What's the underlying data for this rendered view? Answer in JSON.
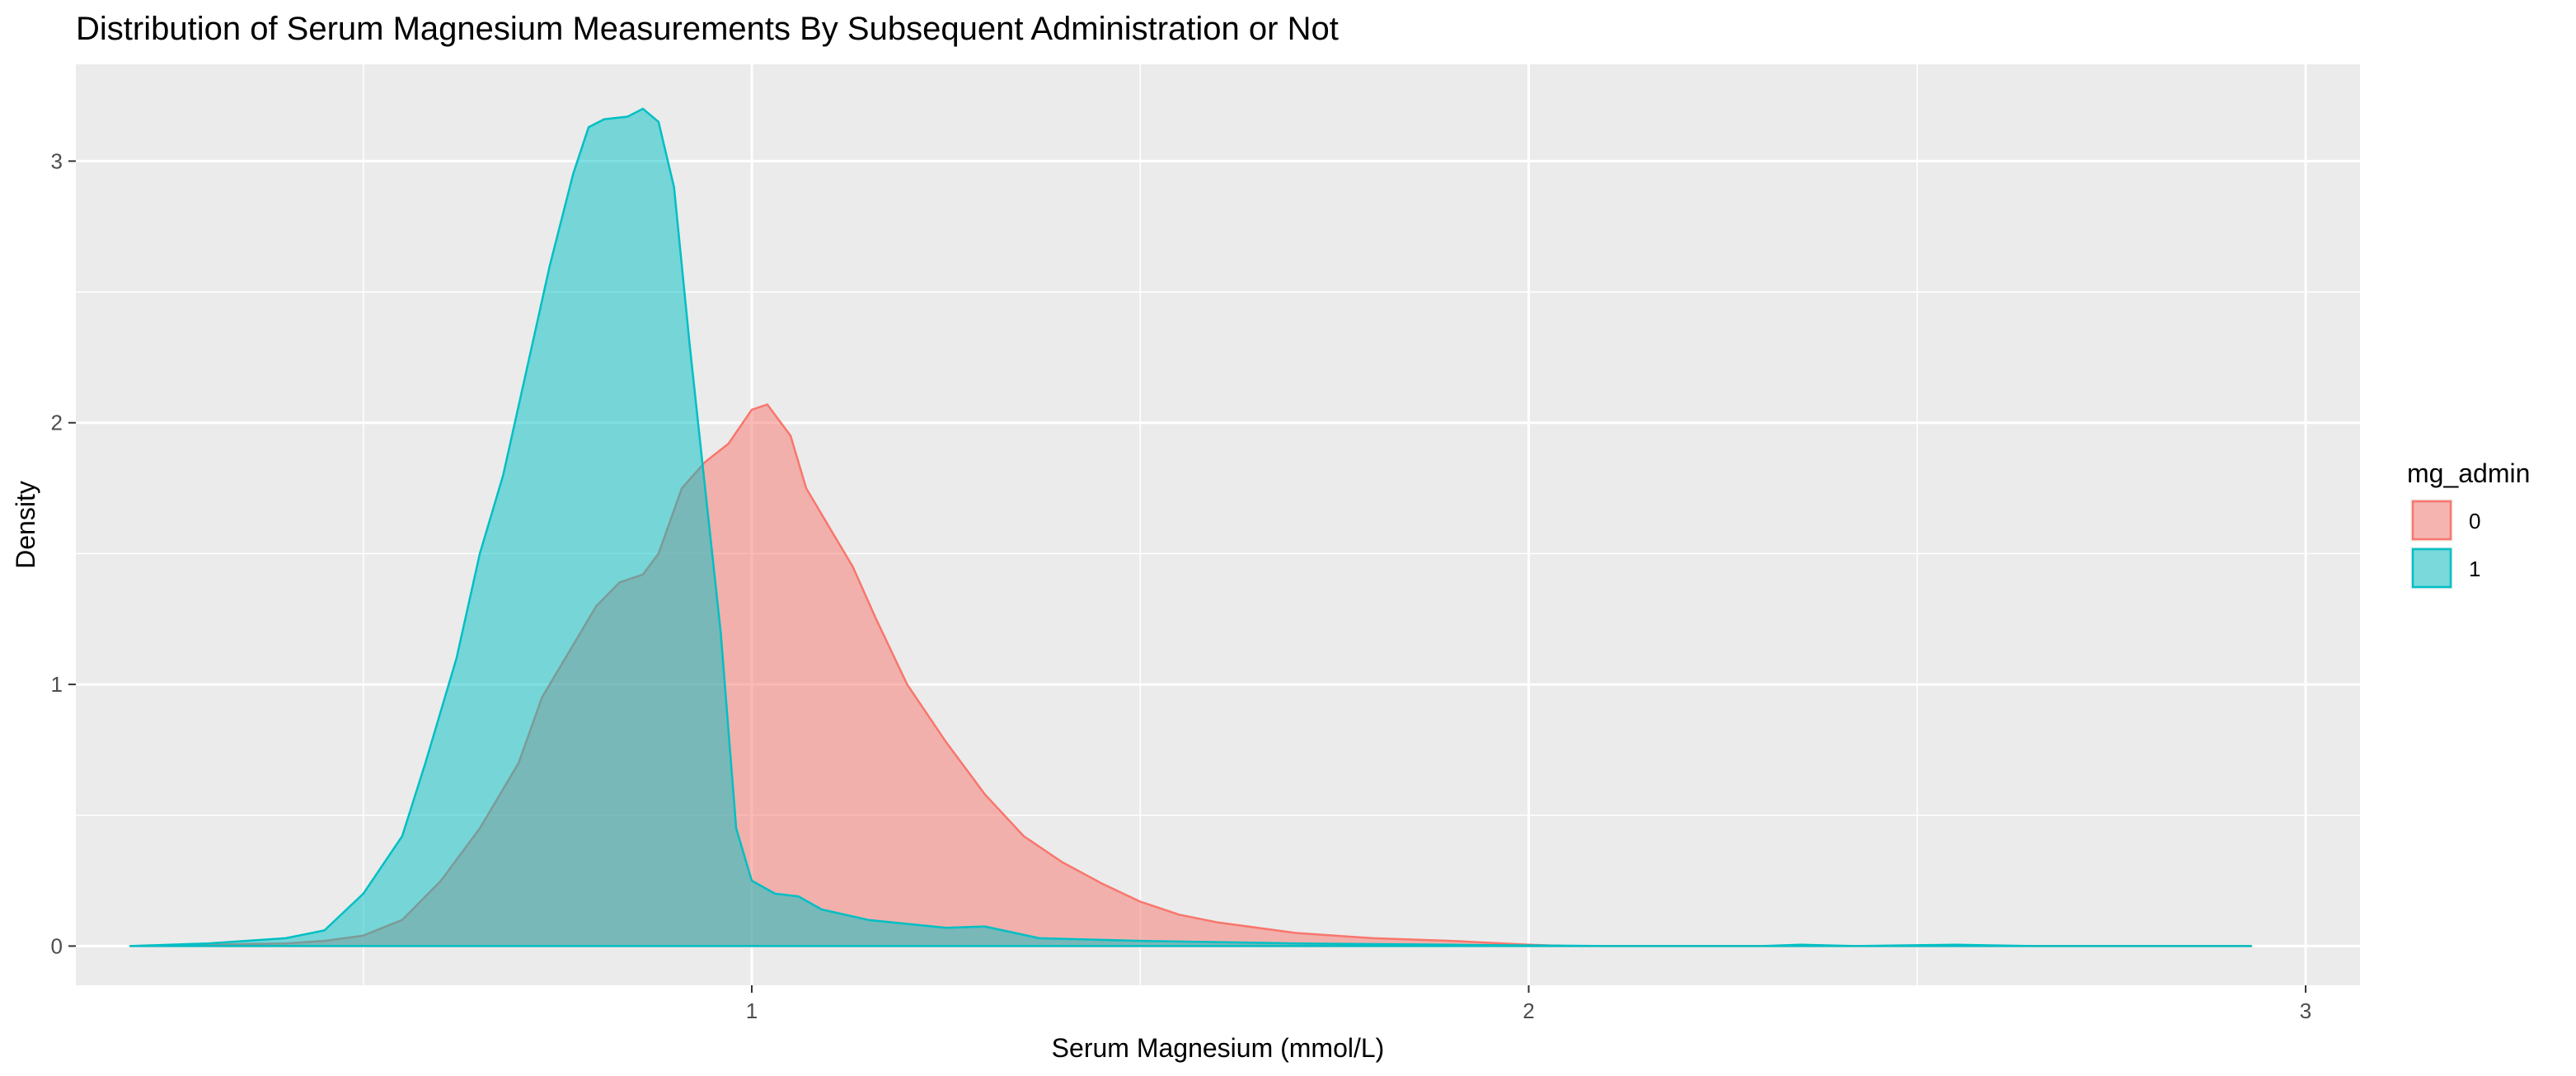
{
  "chart_data": {
    "type": "area",
    "title": "Distribution of Serum Magnesium Measurements By Subsequent Administration or Not",
    "xlabel": "Serum Magnesium (mmol/L)",
    "ylabel": "Density",
    "xlim": [
      0.13,
      3.07
    ],
    "ylim": [
      -0.15,
      3.37
    ],
    "x_ticks": [
      1,
      2,
      3
    ],
    "x_tick_labels": [
      "1",
      "2",
      "3"
    ],
    "y_ticks": [
      0,
      1,
      2,
      3
    ],
    "y_tick_labels": [
      "0",
      "1",
      "2",
      "3"
    ],
    "grid": true,
    "legend": {
      "title": "mg_admin",
      "position": "right"
    },
    "series": [
      {
        "name": "0",
        "color": "#F8766D",
        "points": [
          [
            0.2,
            0.0
          ],
          [
            0.3,
            0.005
          ],
          [
            0.4,
            0.01
          ],
          [
            0.45,
            0.02
          ],
          [
            0.5,
            0.04
          ],
          [
            0.55,
            0.1
          ],
          [
            0.6,
            0.25
          ],
          [
            0.65,
            0.45
          ],
          [
            0.7,
            0.7
          ],
          [
            0.73,
            0.95
          ],
          [
            0.76,
            1.1
          ],
          [
            0.8,
            1.3
          ],
          [
            0.83,
            1.39
          ],
          [
            0.86,
            1.42
          ],
          [
            0.88,
            1.5
          ],
          [
            0.91,
            1.75
          ],
          [
            0.94,
            1.85
          ],
          [
            0.97,
            1.92
          ],
          [
            1.0,
            2.05
          ],
          [
            1.02,
            2.07
          ],
          [
            1.05,
            1.95
          ],
          [
            1.07,
            1.75
          ],
          [
            1.1,
            1.6
          ],
          [
            1.13,
            1.45
          ],
          [
            1.16,
            1.25
          ],
          [
            1.2,
            1.0
          ],
          [
            1.25,
            0.78
          ],
          [
            1.3,
            0.58
          ],
          [
            1.35,
            0.42
          ],
          [
            1.4,
            0.32
          ],
          [
            1.45,
            0.24
          ],
          [
            1.5,
            0.17
          ],
          [
            1.55,
            0.12
          ],
          [
            1.6,
            0.09
          ],
          [
            1.7,
            0.05
          ],
          [
            1.8,
            0.03
          ],
          [
            1.9,
            0.02
          ],
          [
            2.0,
            0.005
          ],
          [
            2.05,
            0.0
          ],
          [
            2.2,
            0.0
          ],
          [
            2.5,
            0.0
          ],
          [
            2.8,
            0.0
          ],
          [
            2.93,
            0.0
          ]
        ]
      },
      {
        "name": "1",
        "color": "#00BFC4",
        "points": [
          [
            0.2,
            0.0
          ],
          [
            0.3,
            0.01
          ],
          [
            0.4,
            0.03
          ],
          [
            0.45,
            0.06
          ],
          [
            0.5,
            0.2
          ],
          [
            0.55,
            0.42
          ],
          [
            0.58,
            0.7
          ],
          [
            0.62,
            1.1
          ],
          [
            0.65,
            1.5
          ],
          [
            0.68,
            1.8
          ],
          [
            0.71,
            2.2
          ],
          [
            0.74,
            2.6
          ],
          [
            0.77,
            2.95
          ],
          [
            0.79,
            3.13
          ],
          [
            0.81,
            3.16
          ],
          [
            0.84,
            3.17
          ],
          [
            0.86,
            3.2
          ],
          [
            0.88,
            3.15
          ],
          [
            0.9,
            2.9
          ],
          [
            0.92,
            2.3
          ],
          [
            0.94,
            1.75
          ],
          [
            0.96,
            1.2
          ],
          [
            0.98,
            0.45
          ],
          [
            1.0,
            0.25
          ],
          [
            1.03,
            0.2
          ],
          [
            1.06,
            0.19
          ],
          [
            1.09,
            0.14
          ],
          [
            1.15,
            0.1
          ],
          [
            1.25,
            0.07
          ],
          [
            1.3,
            0.075
          ],
          [
            1.37,
            0.03
          ],
          [
            1.5,
            0.02
          ],
          [
            1.7,
            0.01
          ],
          [
            1.9,
            0.005
          ],
          [
            2.1,
            0.0
          ],
          [
            2.3,
            0.0
          ],
          [
            2.35,
            0.005
          ],
          [
            2.42,
            0.0
          ],
          [
            2.55,
            0.005
          ],
          [
            2.65,
            0.0
          ],
          [
            2.8,
            0.0
          ],
          [
            2.93,
            0.0
          ]
        ]
      }
    ]
  }
}
